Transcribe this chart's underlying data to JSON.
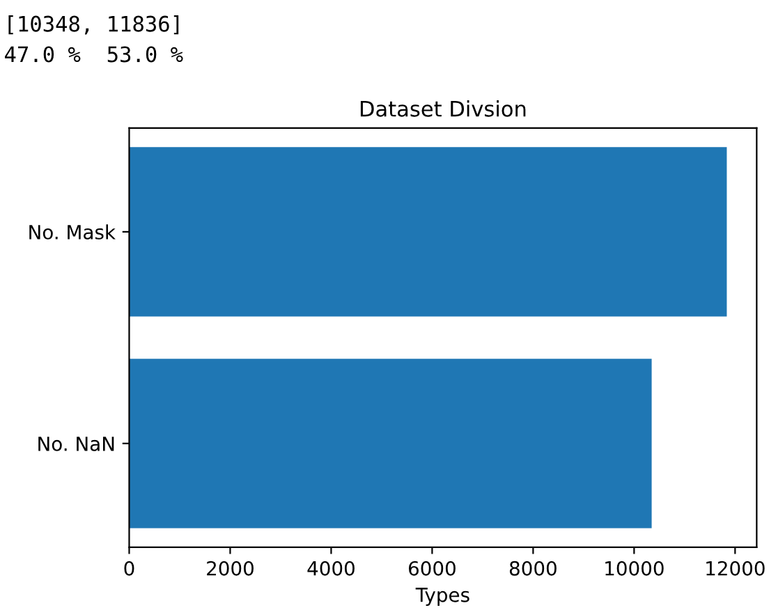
{
  "chart_data": {
    "type": "bar",
    "orientation": "horizontal",
    "title": "Dataset Divsion",
    "xlabel": "Types",
    "categories": [
      "No. Mask",
      "No. NaN"
    ],
    "values": [
      11836,
      10348
    ],
    "color": "#1f77b4",
    "xlim": [
      0,
      12428
    ],
    "xticks": [
      0,
      2000,
      4000,
      6000,
      8000,
      10000,
      12000
    ],
    "grid": false,
    "annotations": [
      "[10348, 11836]",
      "47.0 %  53.0 %"
    ]
  }
}
